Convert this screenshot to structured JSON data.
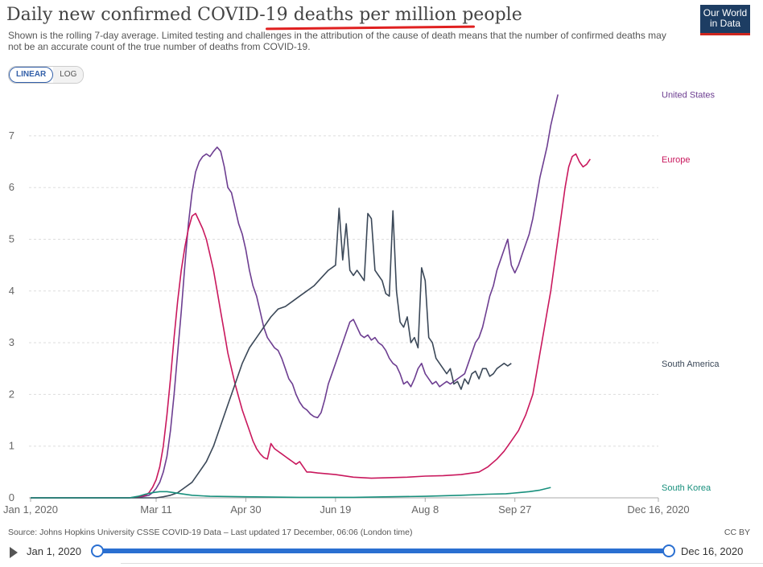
{
  "header": {
    "title_plain": "Daily new confirmed COVID-19 ",
    "title_em": "deaths per million people",
    "subtitle": "Shown is the rolling 7-day average. Limited testing and challenges in the attribution of the cause of death means that the number of confirmed deaths may not be an accurate count of the true number of deaths from COVID-19.",
    "logo_line1": "Our World",
    "logo_line2": "in Data"
  },
  "controls": {
    "linear_label": "LINEAR",
    "log_label": "LOG",
    "selected": "LINEAR"
  },
  "footer": {
    "source": "Source: Johns Hopkins University CSSE COVID-19 Data – Last updated 17 December, 06:06 (London time)",
    "license": "CC BY"
  },
  "timeline": {
    "start_label": "Jan 1, 2020",
    "end_label": "Dec 16, 2020"
  },
  "chart_data": {
    "type": "line",
    "x_tick_labels": [
      "Jan 1, 2020",
      "Mar 11",
      "Apr 30",
      "Jun 19",
      "Aug 8",
      "Sep 27",
      "Dec 16, 2020"
    ],
    "x_tick_days": [
      0,
      70,
      120,
      170,
      220,
      270,
      350
    ],
    "y_ticks": [
      0,
      1,
      2,
      3,
      4,
      5,
      6,
      7
    ],
    "ylim": [
      0,
      7.8
    ],
    "xlim_days": [
      0,
      350
    ],
    "grid": true,
    "series": [
      {
        "name": "United States",
        "color": "#6d3e91",
        "points": [
          [
            0,
            0
          ],
          [
            55,
            0
          ],
          [
            62,
            0.02
          ],
          [
            66,
            0.05
          ],
          [
            68,
            0.1
          ],
          [
            70,
            0.18
          ],
          [
            72,
            0.3
          ],
          [
            74,
            0.5
          ],
          [
            76,
            0.8
          ],
          [
            78,
            1.3
          ],
          [
            80,
            2.0
          ],
          [
            82,
            2.8
          ],
          [
            84,
            3.6
          ],
          [
            86,
            4.5
          ],
          [
            88,
            5.3
          ],
          [
            90,
            5.9
          ],
          [
            92,
            6.3
          ],
          [
            94,
            6.5
          ],
          [
            96,
            6.6
          ],
          [
            98,
            6.65
          ],
          [
            100,
            6.6
          ],
          [
            102,
            6.7
          ],
          [
            104,
            6.78
          ],
          [
            106,
            6.7
          ],
          [
            108,
            6.4
          ],
          [
            110,
            6.0
          ],
          [
            112,
            5.9
          ],
          [
            114,
            5.6
          ],
          [
            116,
            5.3
          ],
          [
            118,
            5.1
          ],
          [
            120,
            4.8
          ],
          [
            122,
            4.4
          ],
          [
            124,
            4.1
          ],
          [
            126,
            3.9
          ],
          [
            128,
            3.6
          ],
          [
            130,
            3.3
          ],
          [
            132,
            3.1
          ],
          [
            134,
            3.0
          ],
          [
            136,
            2.9
          ],
          [
            138,
            2.85
          ],
          [
            140,
            2.7
          ],
          [
            142,
            2.5
          ],
          [
            144,
            2.3
          ],
          [
            146,
            2.2
          ],
          [
            148,
            2.0
          ],
          [
            150,
            1.85
          ],
          [
            152,
            1.75
          ],
          [
            154,
            1.7
          ],
          [
            156,
            1.62
          ],
          [
            158,
            1.57
          ],
          [
            160,
            1.55
          ],
          [
            162,
            1.65
          ],
          [
            164,
            1.9
          ],
          [
            166,
            2.2
          ],
          [
            168,
            2.4
          ],
          [
            170,
            2.6
          ],
          [
            172,
            2.8
          ],
          [
            174,
            3.0
          ],
          [
            176,
            3.2
          ],
          [
            178,
            3.4
          ],
          [
            180,
            3.45
          ],
          [
            182,
            3.3
          ],
          [
            184,
            3.15
          ],
          [
            186,
            3.1
          ],
          [
            188,
            3.15
          ],
          [
            190,
            3.05
          ],
          [
            192,
            3.1
          ],
          [
            194,
            3.0
          ],
          [
            196,
            2.95
          ],
          [
            198,
            2.85
          ],
          [
            200,
            2.7
          ],
          [
            202,
            2.6
          ],
          [
            204,
            2.55
          ],
          [
            206,
            2.4
          ],
          [
            208,
            2.2
          ],
          [
            210,
            2.25
          ],
          [
            212,
            2.15
          ],
          [
            214,
            2.3
          ],
          [
            216,
            2.5
          ],
          [
            218,
            2.6
          ],
          [
            220,
            2.4
          ],
          [
            222,
            2.3
          ],
          [
            224,
            2.2
          ],
          [
            226,
            2.25
          ],
          [
            228,
            2.15
          ],
          [
            230,
            2.2
          ],
          [
            232,
            2.25
          ],
          [
            234,
            2.2
          ],
          [
            236,
            2.25
          ],
          [
            238,
            2.3
          ],
          [
            240,
            2.35
          ],
          [
            242,
            2.4
          ],
          [
            244,
            2.6
          ],
          [
            246,
            2.8
          ],
          [
            248,
            3.0
          ],
          [
            250,
            3.1
          ],
          [
            252,
            3.3
          ],
          [
            254,
            3.6
          ],
          [
            256,
            3.9
          ],
          [
            258,
            4.1
          ],
          [
            260,
            4.4
          ],
          [
            262,
            4.6
          ],
          [
            264,
            4.8
          ],
          [
            266,
            5.0
          ],
          [
            268,
            4.5
          ],
          [
            270,
            4.35
          ],
          [
            272,
            4.5
          ],
          [
            274,
            4.7
          ],
          [
            276,
            4.9
          ],
          [
            278,
            5.1
          ],
          [
            280,
            5.4
          ],
          [
            282,
            5.8
          ],
          [
            284,
            6.2
          ],
          [
            286,
            6.5
          ],
          [
            288,
            6.8
          ],
          [
            290,
            7.2
          ],
          [
            292,
            7.5
          ],
          [
            294,
            7.8
          ]
        ]
      },
      {
        "name": "Europe",
        "color": "#c9185d",
        "points": [
          [
            0,
            0
          ],
          [
            55,
            0
          ],
          [
            60,
            0.02
          ],
          [
            64,
            0.05
          ],
          [
            66,
            0.1
          ],
          [
            68,
            0.2
          ],
          [
            70,
            0.35
          ],
          [
            72,
            0.6
          ],
          [
            74,
            1.0
          ],
          [
            76,
            1.6
          ],
          [
            78,
            2.3
          ],
          [
            80,
            3.1
          ],
          [
            82,
            3.8
          ],
          [
            84,
            4.4
          ],
          [
            86,
            4.85
          ],
          [
            88,
            5.2
          ],
          [
            90,
            5.45
          ],
          [
            92,
            5.5
          ],
          [
            94,
            5.35
          ],
          [
            96,
            5.2
          ],
          [
            98,
            5.0
          ],
          [
            100,
            4.7
          ],
          [
            102,
            4.4
          ],
          [
            104,
            4.0
          ],
          [
            106,
            3.6
          ],
          [
            108,
            3.2
          ],
          [
            110,
            2.8
          ],
          [
            112,
            2.5
          ],
          [
            114,
            2.2
          ],
          [
            116,
            1.95
          ],
          [
            118,
            1.7
          ],
          [
            120,
            1.5
          ],
          [
            122,
            1.3
          ],
          [
            124,
            1.1
          ],
          [
            126,
            0.95
          ],
          [
            128,
            0.85
          ],
          [
            130,
            0.78
          ],
          [
            132,
            0.75
          ],
          [
            134,
            1.05
          ],
          [
            136,
            0.95
          ],
          [
            138,
            0.9
          ],
          [
            140,
            0.85
          ],
          [
            142,
            0.8
          ],
          [
            144,
            0.75
          ],
          [
            146,
            0.7
          ],
          [
            148,
            0.65
          ],
          [
            150,
            0.7
          ],
          [
            152,
            0.6
          ],
          [
            154,
            0.5
          ],
          [
            156,
            0.5
          ],
          [
            160,
            0.48
          ],
          [
            170,
            0.45
          ],
          [
            180,
            0.4
          ],
          [
            190,
            0.38
          ],
          [
            200,
            0.39
          ],
          [
            210,
            0.4
          ],
          [
            220,
            0.42
          ],
          [
            230,
            0.43
          ],
          [
            240,
            0.45
          ],
          [
            250,
            0.5
          ],
          [
            255,
            0.6
          ],
          [
            260,
            0.75
          ],
          [
            264,
            0.9
          ],
          [
            268,
            1.1
          ],
          [
            272,
            1.3
          ],
          [
            276,
            1.6
          ],
          [
            280,
            2.0
          ],
          [
            282,
            2.4
          ],
          [
            284,
            2.8
          ],
          [
            286,
            3.2
          ],
          [
            288,
            3.6
          ],
          [
            290,
            4.0
          ],
          [
            292,
            4.5
          ],
          [
            294,
            5.0
          ],
          [
            296,
            5.5
          ],
          [
            298,
            6.0
          ],
          [
            300,
            6.4
          ],
          [
            302,
            6.6
          ],
          [
            304,
            6.65
          ],
          [
            306,
            6.5
          ],
          [
            308,
            6.4
          ],
          [
            310,
            6.45
          ],
          [
            312,
            6.55
          ]
        ]
      },
      {
        "name": "South America",
        "color": "#3b4858",
        "points": [
          [
            0,
            0
          ],
          [
            70,
            0
          ],
          [
            74,
            0.02
          ],
          [
            78,
            0.05
          ],
          [
            82,
            0.1
          ],
          [
            86,
            0.2
          ],
          [
            90,
            0.3
          ],
          [
            94,
            0.5
          ],
          [
            98,
            0.7
          ],
          [
            102,
            1.0
          ],
          [
            106,
            1.4
          ],
          [
            110,
            1.8
          ],
          [
            114,
            2.2
          ],
          [
            118,
            2.6
          ],
          [
            122,
            2.9
          ],
          [
            126,
            3.1
          ],
          [
            130,
            3.3
          ],
          [
            134,
            3.5
          ],
          [
            138,
            3.65
          ],
          [
            142,
            3.7
          ],
          [
            146,
            3.8
          ],
          [
            150,
            3.9
          ],
          [
            154,
            4.0
          ],
          [
            158,
            4.1
          ],
          [
            162,
            4.25
          ],
          [
            166,
            4.4
          ],
          [
            170,
            4.5
          ],
          [
            172,
            5.6
          ],
          [
            174,
            4.6
          ],
          [
            176,
            5.3
          ],
          [
            178,
            4.4
          ],
          [
            180,
            4.3
          ],
          [
            182,
            4.4
          ],
          [
            184,
            4.3
          ],
          [
            186,
            4.2
          ],
          [
            188,
            5.5
          ],
          [
            190,
            5.4
          ],
          [
            192,
            4.4
          ],
          [
            194,
            4.3
          ],
          [
            196,
            4.2
          ],
          [
            198,
            3.95
          ],
          [
            200,
            3.9
          ],
          [
            202,
            5.55
          ],
          [
            204,
            4.0
          ],
          [
            206,
            3.4
          ],
          [
            208,
            3.3
          ],
          [
            210,
            3.5
          ],
          [
            212,
            3.0
          ],
          [
            214,
            3.1
          ],
          [
            216,
            2.9
          ],
          [
            218,
            4.45
          ],
          [
            220,
            4.2
          ],
          [
            222,
            3.1
          ],
          [
            224,
            3.0
          ],
          [
            226,
            2.7
          ],
          [
            228,
            2.6
          ],
          [
            230,
            2.5
          ],
          [
            232,
            2.4
          ],
          [
            234,
            2.5
          ],
          [
            236,
            2.2
          ],
          [
            238,
            2.25
          ],
          [
            240,
            2.1
          ],
          [
            242,
            2.3
          ],
          [
            244,
            2.2
          ],
          [
            246,
            2.4
          ],
          [
            248,
            2.45
          ],
          [
            250,
            2.3
          ],
          [
            252,
            2.5
          ],
          [
            254,
            2.5
          ],
          [
            256,
            2.35
          ],
          [
            258,
            2.4
          ],
          [
            260,
            2.5
          ],
          [
            262,
            2.55
          ],
          [
            264,
            2.6
          ],
          [
            266,
            2.55
          ],
          [
            268,
            2.6
          ]
        ]
      },
      {
        "name": "South Korea",
        "color": "#18907d",
        "points": [
          [
            0,
            0
          ],
          [
            55,
            0
          ],
          [
            60,
            0.03
          ],
          [
            64,
            0.07
          ],
          [
            68,
            0.1
          ],
          [
            72,
            0.12
          ],
          [
            76,
            0.12
          ],
          [
            80,
            0.1
          ],
          [
            84,
            0.08
          ],
          [
            90,
            0.05
          ],
          [
            100,
            0.03
          ],
          [
            120,
            0.02
          ],
          [
            150,
            0.01
          ],
          [
            180,
            0.01
          ],
          [
            200,
            0.02
          ],
          [
            220,
            0.03
          ],
          [
            240,
            0.05
          ],
          [
            255,
            0.07
          ],
          [
            265,
            0.08
          ],
          [
            272,
            0.1
          ],
          [
            278,
            0.12
          ],
          [
            284,
            0.15
          ],
          [
            290,
            0.2
          ]
        ]
      }
    ]
  }
}
